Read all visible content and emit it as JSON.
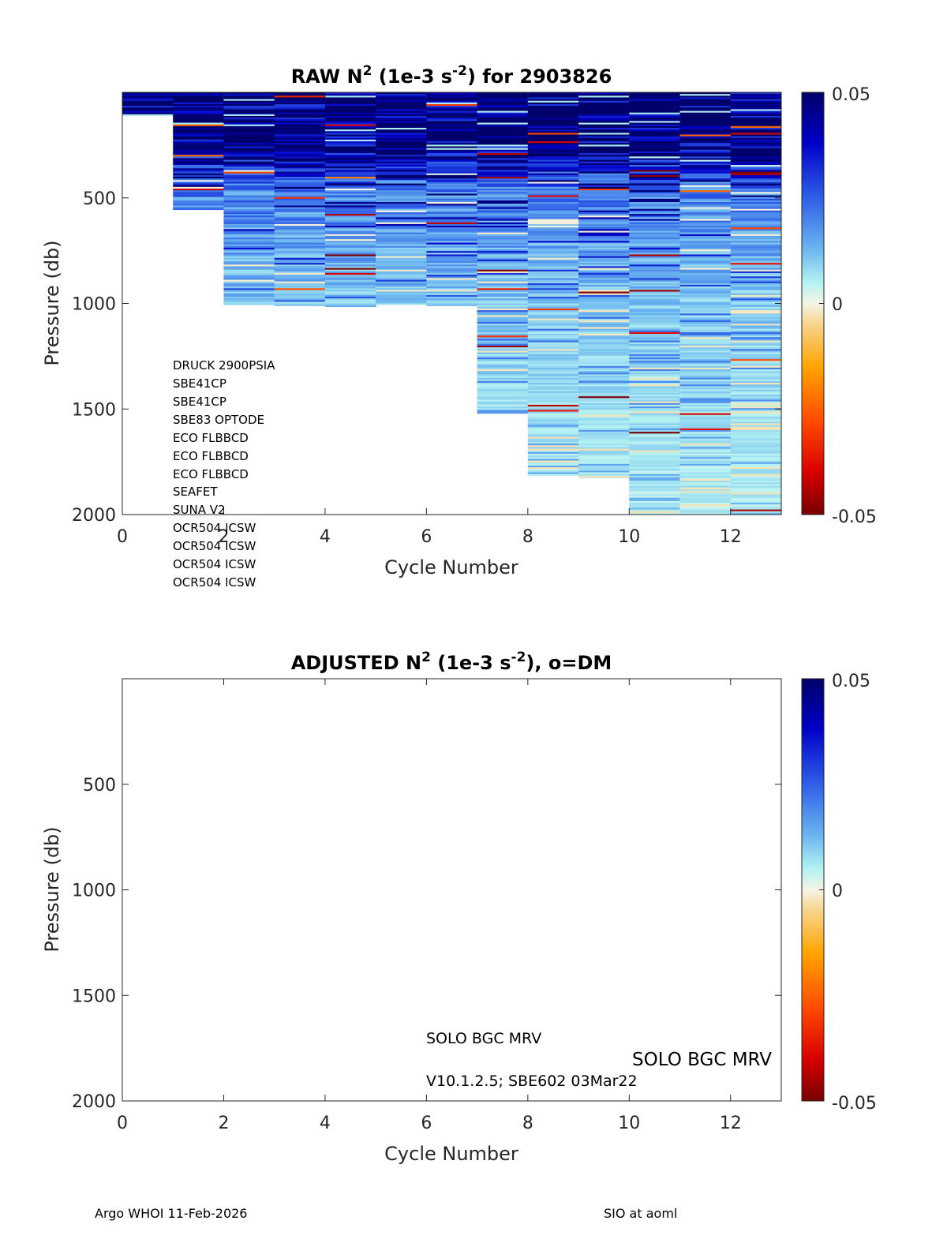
{
  "panels": [
    {
      "id": "raw",
      "title_parts": {
        "pre": "RAW N",
        "sup1": "2",
        "mid": " (1e-3 s",
        "sup2": "-2",
        "post": ") for 2903826"
      },
      "xlabel": "Cycle Number",
      "ylabel": "Pressure (db)",
      "xticks": [
        "0",
        "2",
        "4",
        "6",
        "8",
        "10",
        "12"
      ],
      "yticks": [
        "500",
        "1000",
        "1500",
        "2000"
      ],
      "cbar_ticks": [
        "0.05",
        "0",
        "-0.05"
      ],
      "sensor_list": [
        "DRUCK 2900PSIA",
        "SBE41CP",
        "SBE41CP",
        "SBE83 OPTODE",
        "ECO FLBBCD",
        "ECO FLBBCD",
        "ECO FLBBCD",
        "SEAFET",
        "SUNA V2",
        "OCR504 ICSW",
        "OCR504 ICSW",
        "OCR504 ICSW",
        "OCR504 ICSW"
      ]
    },
    {
      "id": "adjusted",
      "title_parts": {
        "pre": "ADJUSTED N",
        "sup1": "2",
        "mid": " (1e-3 s",
        "sup2": "-2",
        "post": "), o=DM"
      },
      "xlabel": "Cycle Number",
      "ylabel": "Pressure (db)",
      "xticks": [
        "0",
        "2",
        "4",
        "6",
        "8",
        "10",
        "12"
      ],
      "yticks": [
        "500",
        "1000",
        "1500",
        "2000"
      ],
      "cbar_ticks": [
        "0.05",
        "0",
        "-0.05"
      ],
      "annotations": [
        "SOLO BGC MRV",
        "SOLO BGC MRV",
        "V10.1.2.5; SBE602 03Mar22"
      ]
    }
  ],
  "footer": {
    "left": "Argo WHOI 11-Feb-2026",
    "right": "SIO at aoml"
  },
  "chart_data": [
    {
      "type": "heatmap",
      "title": "RAW N2 (1e-3 s-2) for 2903826",
      "xlabel": "Cycle Number",
      "ylabel": "Pressure (db)",
      "xlim": [
        0,
        13
      ],
      "ylim": [
        0,
        2000
      ],
      "y_reversed": true,
      "clim": [
        -0.05,
        0.05
      ],
      "colormap": "jet-reversed",
      "columns": [
        {
          "cycle_start": 0,
          "cycle_end": 1,
          "max_pressure": 110
        },
        {
          "cycle_start": 1,
          "cycle_end": 2,
          "max_pressure": 555
        },
        {
          "cycle_start": 2,
          "cycle_end": 3,
          "max_pressure": 1005
        },
        {
          "cycle_start": 3,
          "cycle_end": 4,
          "max_pressure": 1010
        },
        {
          "cycle_start": 4,
          "cycle_end": 5,
          "max_pressure": 1015
        },
        {
          "cycle_start": 5,
          "cycle_end": 6,
          "max_pressure": 1005
        },
        {
          "cycle_start": 6,
          "cycle_end": 7,
          "max_pressure": 1010
        },
        {
          "cycle_start": 7,
          "cycle_end": 8,
          "max_pressure": 1520
        },
        {
          "cycle_start": 8,
          "cycle_end": 9,
          "max_pressure": 1815
        },
        {
          "cycle_start": 9,
          "cycle_end": 10,
          "max_pressure": 1825
        },
        {
          "cycle_start": 10,
          "cycle_end": 11,
          "max_pressure": 2000
        },
        {
          "cycle_start": 11,
          "cycle_end": 12,
          "max_pressure": 2000
        },
        {
          "cycle_start": 12,
          "cycle_end": 13,
          "max_pressure": 2000
        }
      ],
      "value_profile": [
        {
          "pressure": 0,
          "value": 0.05
        },
        {
          "pressure": 250,
          "value": 0.048
        },
        {
          "pressure": 350,
          "value": 0.035
        },
        {
          "pressure": 450,
          "value": 0.02
        },
        {
          "pressure": 700,
          "value": 0.015
        },
        {
          "pressure": 1000,
          "value": 0.01
        },
        {
          "pressure": 1500,
          "value": 0.007
        },
        {
          "pressure": 2000,
          "value": 0.005
        }
      ]
    },
    {
      "type": "heatmap",
      "title": "ADJUSTED N2 (1e-3 s-2), o=DM",
      "xlabel": "Cycle Number",
      "ylabel": "Pressure (db)",
      "xlim": [
        0,
        13
      ],
      "ylim": [
        0,
        2000
      ],
      "y_reversed": true,
      "clim": [
        -0.05,
        0.05
      ],
      "colormap": "jet-reversed",
      "columns": []
    }
  ]
}
